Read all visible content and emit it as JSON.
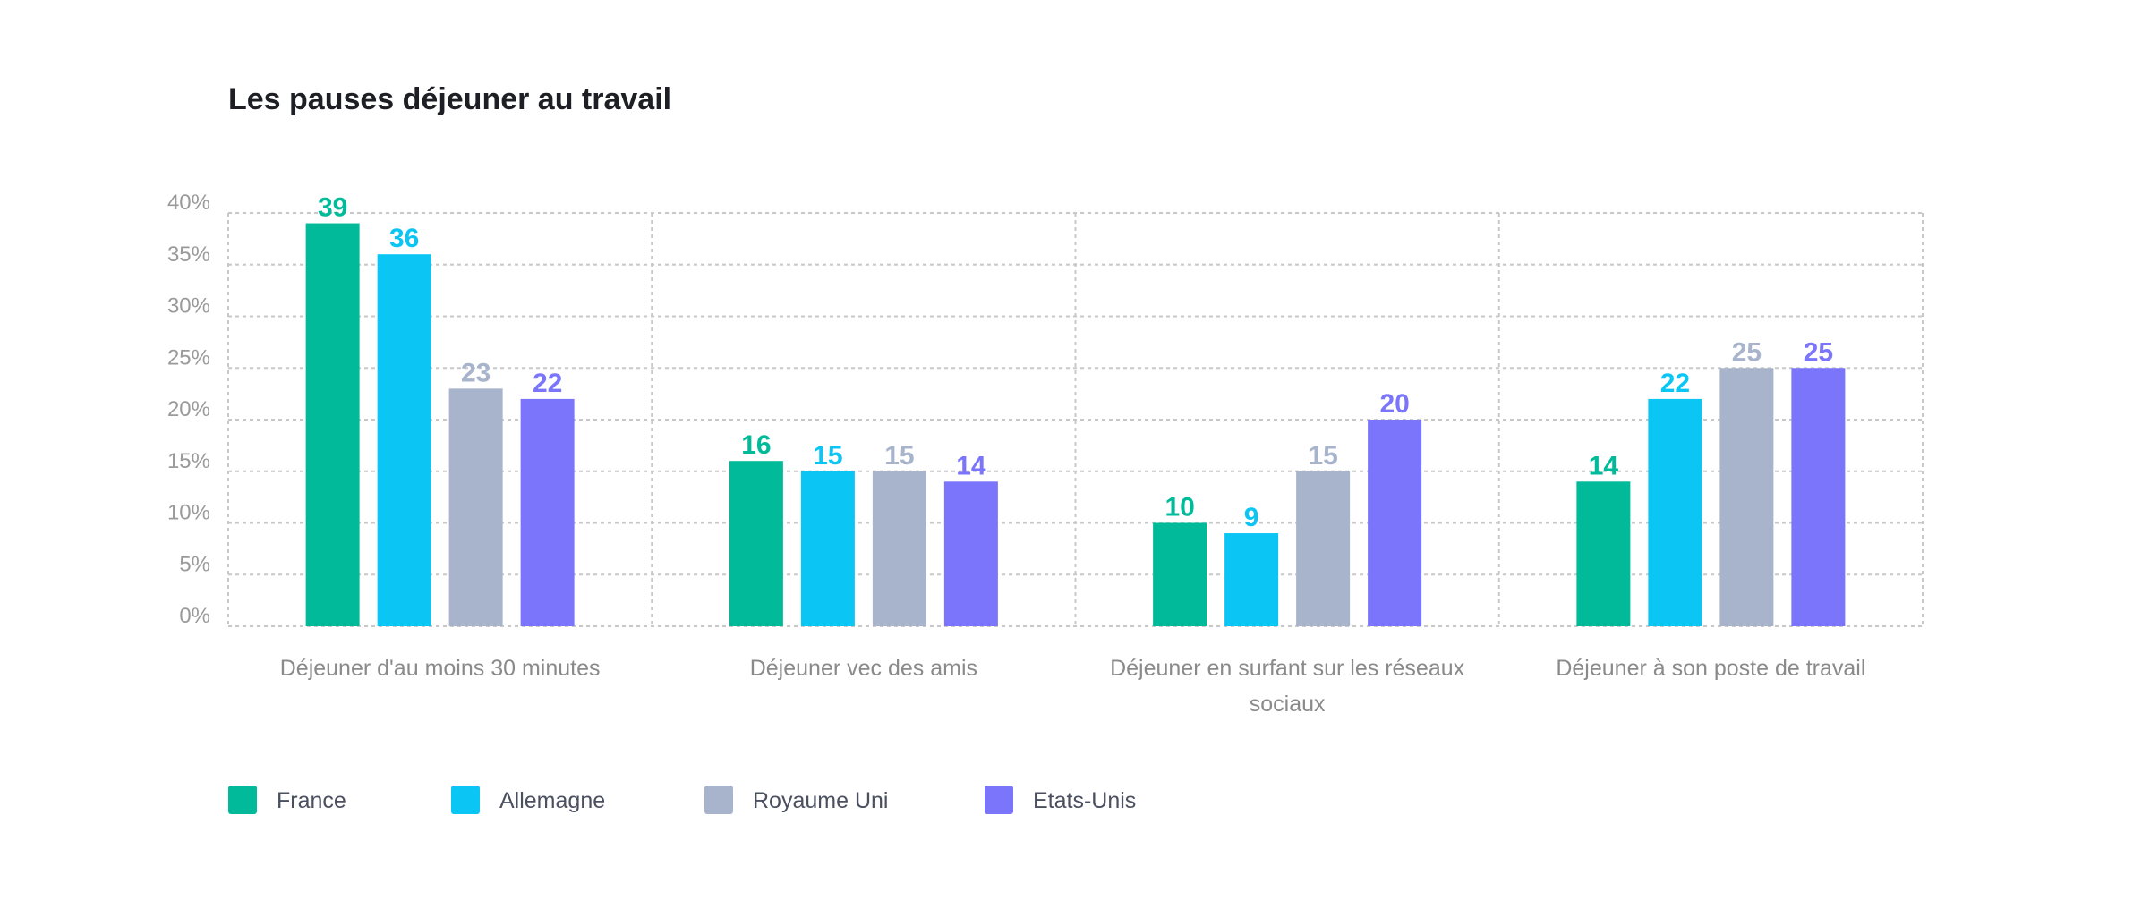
{
  "chart_data": {
    "type": "bar",
    "title": "Les pauses déjeuner au travail",
    "xlabel": "",
    "ylabel": "",
    "ylim": [
      0,
      40
    ],
    "yticks": [
      "0%",
      "5%",
      "10%",
      "15%",
      "20%",
      "25%",
      "30%",
      "35%",
      "40%"
    ],
    "grid": true,
    "legend_position": "bottom-left",
    "categories": [
      [
        "Déjeuner d'au moins 30 minutes"
      ],
      [
        "Déjeuner vec des amis"
      ],
      [
        "Déjeuner en surfant sur les réseaux",
        "sociaux"
      ],
      [
        "Déjeuner à son poste de travail"
      ]
    ],
    "series": [
      {
        "name": "France",
        "color": "#00BA9A",
        "values": [
          39,
          16,
          10,
          14
        ]
      },
      {
        "name": "Allemagne",
        "color": "#0BC5F5",
        "values": [
          36,
          15,
          9,
          22
        ]
      },
      {
        "name": "Royaume Uni",
        "color": "#A8B4CC",
        "values": [
          23,
          15,
          15,
          25
        ]
      },
      {
        "name": "Etats-Unis",
        "color": "#7A75FA",
        "values": [
          22,
          14,
          20,
          25
        ]
      }
    ]
  }
}
